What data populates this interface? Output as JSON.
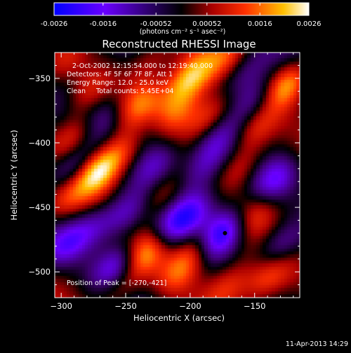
{
  "colorbar": {
    "ticks": [
      "-0.0026",
      "-0.0016",
      "-0.00052",
      "0.00052",
      "0.0016",
      "0.0026"
    ],
    "tick_values": [
      -0.0026,
      -0.0016,
      -0.00052,
      0.00052,
      0.0016,
      0.0026
    ],
    "range": [
      -0.0026,
      0.0026
    ],
    "unit_label": "(photons cm⁻² s⁻¹ asec⁻²)",
    "colors": [
      "#0000ff",
      "#6a00ff",
      "#000000",
      "#aa0000",
      "#ff3000",
      "#ffc000",
      "#ffffff"
    ]
  },
  "chart_data": {
    "type": "heatmap",
    "title": "Reconstructed RHESSI Image",
    "xlabel": "Heliocentric X (arcsec)",
    "ylabel": "Heliocentric Y (arcsec)",
    "xlim": [
      -305,
      -115
    ],
    "ylim": [
      -520,
      -330
    ],
    "xticks": [
      -300,
      -250,
      -200,
      -150
    ],
    "yticks": [
      -350,
      -400,
      -450,
      -500
    ],
    "annotations": {
      "time": "2-Oct-2002 12:15:54.000 to 12:19:40.000",
      "detectors": "Detectors: 4F 5F 6F 7F 8F, Att 1",
      "energy": "Energy Range: 12.0 - 25.0 keV",
      "clean": "Clean     Total counts: 5.45E+04",
      "peak": "Position of Peak = [-270,-421]"
    },
    "peak_position": [
      -270,
      -421
    ],
    "min_marker": [
      -173,
      -470
    ],
    "blobs": [
      {
        "x": -272,
        "y": -422,
        "v": 1.0
      },
      {
        "x": -290,
        "y": -395,
        "v": 0.6
      },
      {
        "x": -250,
        "y": -405,
        "v": 0.55
      },
      {
        "x": -222,
        "y": -442,
        "v": 0.45
      },
      {
        "x": -235,
        "y": -485,
        "v": 0.9
      },
      {
        "x": -255,
        "y": -512,
        "v": 0.45
      },
      {
        "x": -195,
        "y": -480,
        "v": 0.55
      },
      {
        "x": -208,
        "y": -500,
        "v": 0.5
      },
      {
        "x": -200,
        "y": -350,
        "v": 0.85
      },
      {
        "x": -185,
        "y": -380,
        "v": 0.6
      },
      {
        "x": -210,
        "y": -375,
        "v": 0.5
      },
      {
        "x": -240,
        "y": -370,
        "v": 0.5
      },
      {
        "x": -280,
        "y": -362,
        "v": 0.45
      },
      {
        "x": -150,
        "y": -390,
        "v": 0.55
      },
      {
        "x": -160,
        "y": -418,
        "v": 0.45
      },
      {
        "x": -125,
        "y": -355,
        "v": 0.95
      },
      {
        "x": -150,
        "y": -455,
        "v": 0.4
      },
      {
        "x": -140,
        "y": -505,
        "v": 0.5
      },
      {
        "x": -170,
        "y": -510,
        "v": 0.45
      },
      {
        "x": -300,
        "y": -340,
        "v": 0.35
      },
      {
        "x": -300,
        "y": -445,
        "v": 0.45
      },
      {
        "x": -230,
        "y": -335,
        "v": 0.35
      },
      {
        "x": -170,
        "y": -335,
        "v": 0.4
      },
      {
        "x": -175,
        "y": -470,
        "v": -1.0
      },
      {
        "x": -255,
        "y": -495,
        "v": -0.8
      },
      {
        "x": -225,
        "y": -415,
        "v": -0.55
      },
      {
        "x": -200,
        "y": -455,
        "v": -0.55
      },
      {
        "x": -250,
        "y": -455,
        "v": -0.6
      },
      {
        "x": -298,
        "y": -480,
        "v": -0.55
      },
      {
        "x": -290,
        "y": -420,
        "v": -0.6
      },
      {
        "x": -235,
        "y": -395,
        "v": -0.45
      },
      {
        "x": -135,
        "y": -430,
        "v": -0.6
      },
      {
        "x": -130,
        "y": -480,
        "v": -0.6
      },
      {
        "x": -148,
        "y": -365,
        "v": -0.5
      },
      {
        "x": -160,
        "y": -345,
        "v": -0.45
      },
      {
        "x": -190,
        "y": -420,
        "v": -0.45
      },
      {
        "x": -180,
        "y": -398,
        "v": -0.35
      },
      {
        "x": -275,
        "y": -465,
        "v": -0.5
      },
      {
        "x": -265,
        "y": -380,
        "v": -0.35
      },
      {
        "x": -218,
        "y": -468,
        "v": -0.4
      }
    ]
  },
  "footer": {
    "date": "11-Apr-2013 14:29"
  }
}
